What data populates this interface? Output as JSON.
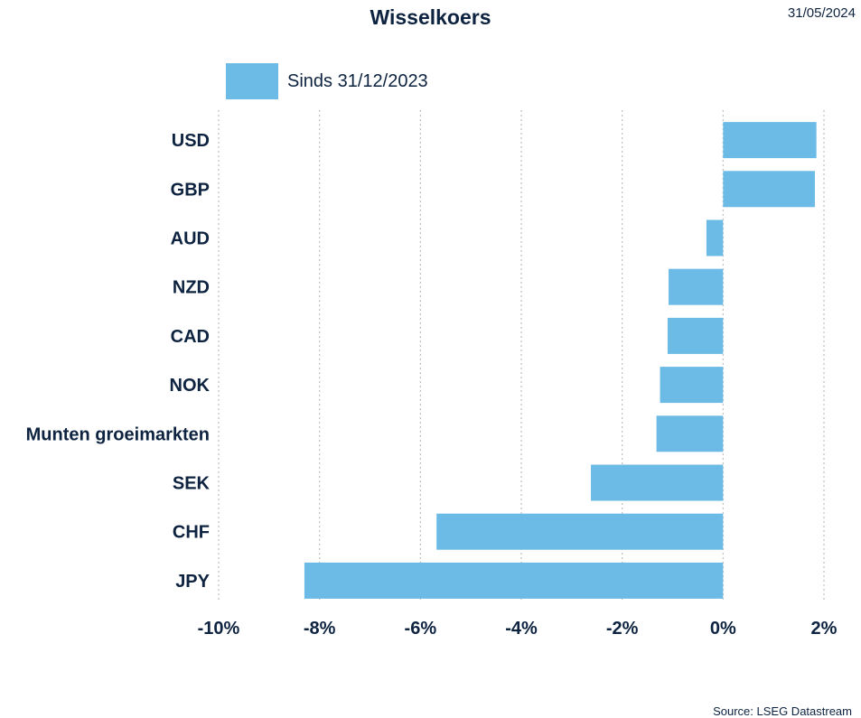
{
  "header": {
    "title": "Wisselkoers",
    "date": "31/05/2024"
  },
  "legend": {
    "label": "Sinds 31/12/2023"
  },
  "footer": {
    "source": "Source: LSEG Datastream"
  },
  "colors": {
    "bar": "#6bbbe6",
    "text": "#0d2340",
    "grid": "#bfbfbf"
  },
  "chart_data": {
    "type": "bar",
    "orientation": "horizontal",
    "title": "Wisselkoers",
    "categories": [
      "USD",
      "GBP",
      "AUD",
      "NZD",
      "CAD",
      "NOK",
      "Munten groeimarkten",
      "SEK",
      "CHF",
      "JPY"
    ],
    "series": [
      {
        "name": "Sinds 31/12/2023",
        "values": [
          1.85,
          1.82,
          -0.33,
          -1.08,
          -1.1,
          -1.25,
          -1.32,
          -2.62,
          -5.68,
          -8.3
        ]
      }
    ],
    "xlim": [
      -10,
      2
    ],
    "xticks": [
      -10,
      -8,
      -6,
      -4,
      -2,
      0,
      2
    ],
    "xtick_labels": [
      "-10%",
      "-8%",
      "-6%",
      "-4%",
      "-2%",
      "0%",
      "2%"
    ],
    "xlabel": "",
    "ylabel": "",
    "grid": "vertical-dotted",
    "legend_position": "top-left"
  }
}
